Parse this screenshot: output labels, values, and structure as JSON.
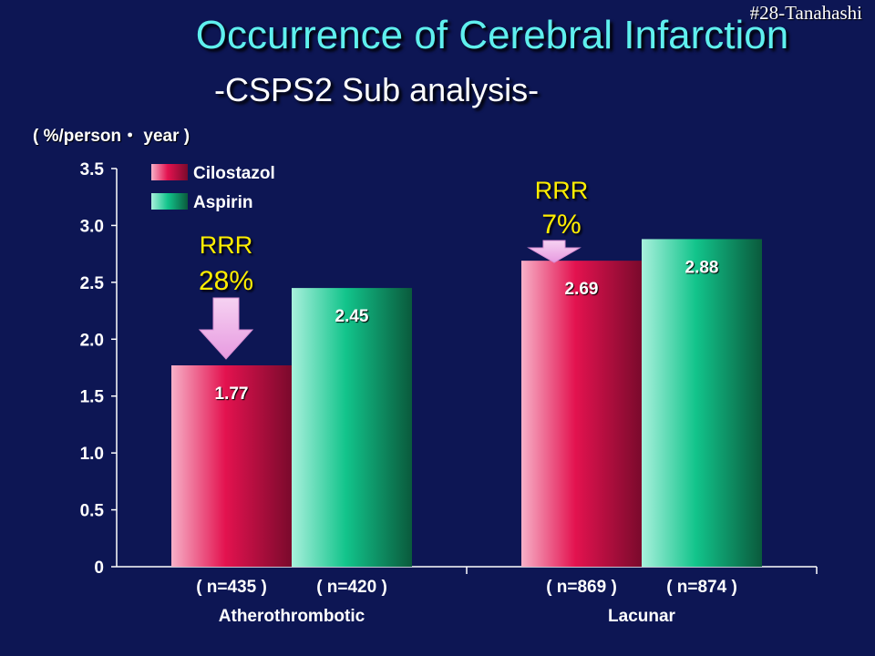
{
  "slide": {
    "corner_tag": "#28-Tanahashi",
    "title": "Occurrence of Cerebral Infarction",
    "subtitle": "-CSPS2 Sub analysis-",
    "unit_label": "( %/person・ year )"
  },
  "chart_data": {
    "type": "bar",
    "title": "Occurrence of Cerebral Infarction",
    "ylabel": "( %/person・ year )",
    "ylim": [
      0,
      3.5
    ],
    "yticks": [
      "0",
      "0.5",
      "1.0",
      "1.5",
      "2.0",
      "2.5",
      "3.0",
      "3.5"
    ],
    "ytick_values": [
      0,
      0.5,
      1.0,
      1.5,
      2.0,
      2.5,
      3.0,
      3.5
    ],
    "categories": [
      "Atherothrombotic",
      "Lacunar"
    ],
    "n_labels": [
      [
        "( n=435 )",
        "( n=420 )"
      ],
      [
        "( n=869 )",
        "( n=874 )"
      ]
    ],
    "series": [
      {
        "name": "Cilostazol",
        "values": [
          1.77,
          2.69
        ],
        "labels": [
          "1.77",
          "2.69"
        ],
        "color": "#e0104e"
      },
      {
        "name": "Aspirin",
        "values": [
          2.45,
          2.88
        ],
        "labels": [
          "2.45",
          "2.88"
        ],
        "color": "#10c88e"
      }
    ],
    "legend": "top-left",
    "annotations": [
      {
        "category": "Atherothrombotic",
        "line1": "RRR",
        "line2": "28%"
      },
      {
        "category": "Lacunar",
        "line1": "RRR",
        "line2": "7%"
      }
    ],
    "grid": false
  }
}
